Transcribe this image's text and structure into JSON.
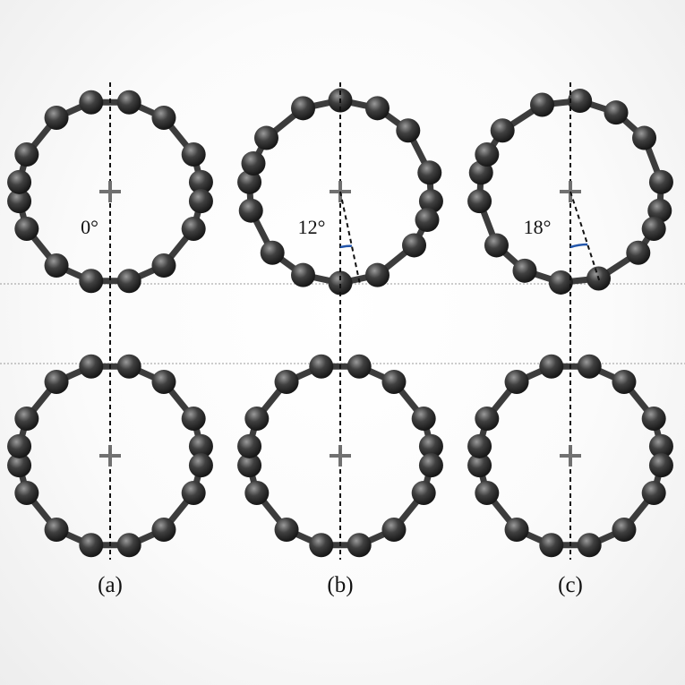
{
  "panels": [
    {
      "label": "(a)",
      "angle_label": "0°",
      "tilt_deg": 0
    },
    {
      "label": "(b)",
      "angle_label": "12°",
      "tilt_deg": 12
    },
    {
      "label": "(c)",
      "angle_label": "18°",
      "tilt_deg": 18
    }
  ],
  "colors": {
    "atom": "#404040",
    "bond": "#3c3c3c",
    "axis_line": "#111111",
    "center_marker": "#707070",
    "angle_arc": "#2255aa",
    "separator_line": "#9a9a9a"
  }
}
